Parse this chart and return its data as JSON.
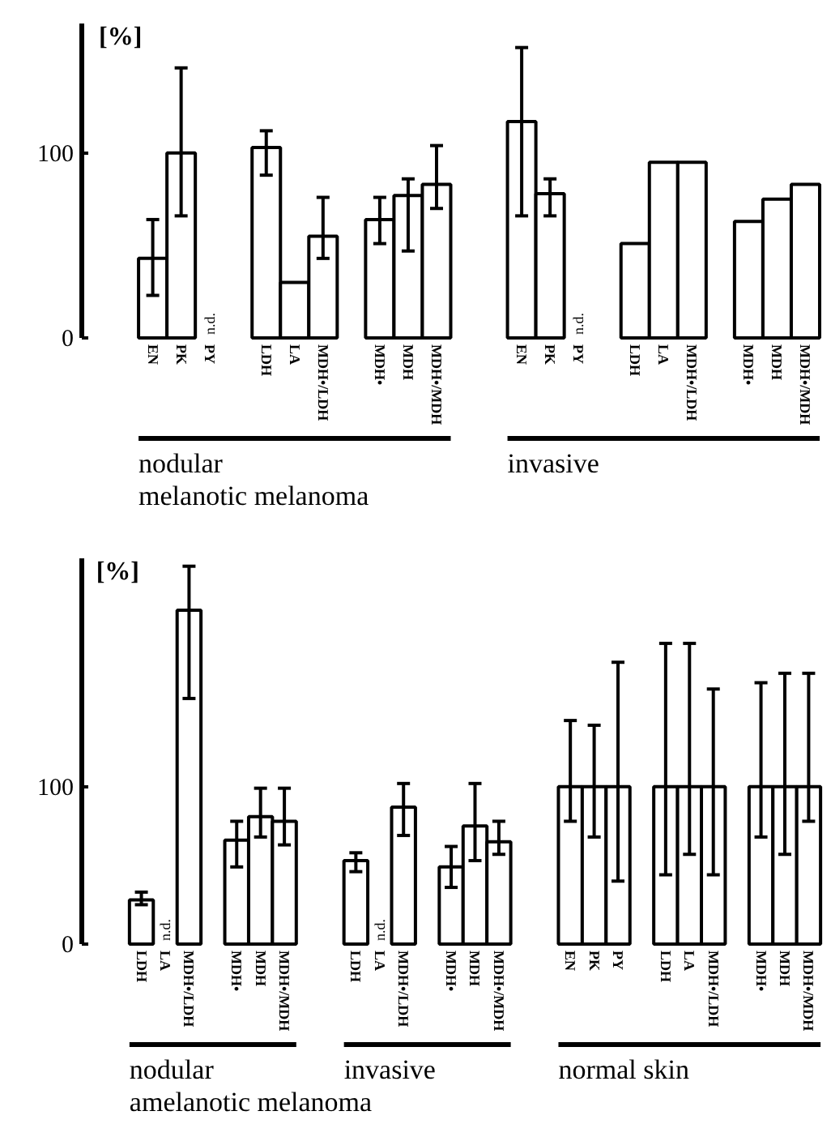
{
  "chart_data": [
    {
      "type": "bar",
      "ylabel": "[%]",
      "ylim": [
        0,
        170
      ],
      "yticks": [
        0,
        100
      ],
      "color": "#ffffff",
      "categories": [
        "EN",
        "PK",
        "PY",
        null,
        "LDH",
        "LA",
        "MDH•/LDH",
        null,
        "MDH•",
        "MDH",
        "MDH•/MDH",
        null,
        null,
        "EN",
        "PK",
        "PY",
        null,
        "LDH",
        "LA",
        "MDH•/LDH",
        null,
        "MDH•",
        "MDH",
        "MDH•/MDH"
      ],
      "values": [
        43,
        100,
        null,
        null,
        103,
        30,
        55,
        null,
        64,
        77,
        83,
        null,
        null,
        117,
        78,
        null,
        null,
        51,
        95,
        95,
        null,
        63,
        75,
        83
      ],
      "errors": [
        [
          23,
          64
        ],
        [
          66,
          146
        ],
        null,
        null,
        [
          88,
          112
        ],
        null,
        [
          43,
          76
        ],
        null,
        [
          51,
          76
        ],
        [
          47,
          86
        ],
        [
          70,
          104
        ],
        null,
        null,
        [
          66,
          157
        ],
        [
          66,
          86
        ],
        null,
        null,
        null,
        null,
        null,
        null,
        null,
        null,
        null
      ],
      "value_labels": [
        null,
        null,
        "n.d.",
        null,
        null,
        null,
        null,
        null,
        null,
        null,
        null,
        null,
        null,
        null,
        null,
        "n.d.",
        null,
        null,
        null,
        null,
        null,
        null,
        null,
        null
      ],
      "annotations": [
        "nodular",
        "invasive",
        "melanotic  melanoma"
      ]
    },
    {
      "type": "bar",
      "ylabel": "[%]",
      "ylim": [
        0,
        245
      ],
      "yticks": [
        0,
        100
      ],
      "color": "#ffffff",
      "categories": [
        "LDH",
        "LA",
        "MDH•/LDH",
        null,
        "MDH•",
        "MDH",
        "MDH•/MDH",
        null,
        null,
        "LDH",
        "LA",
        "MDH•/LDH",
        null,
        "MDH•",
        "MDH",
        "MDH•/MDH",
        null,
        null,
        "EN",
        "PK",
        "PY",
        null,
        "LDH",
        "LA",
        "MDH•/LDH",
        null,
        "MDH•",
        "MDH",
        "MDH•/MDH"
      ],
      "values": [
        28,
        null,
        212,
        null,
        66,
        81,
        78,
        null,
        null,
        53,
        null,
        87,
        null,
        49,
        75,
        65,
        null,
        null,
        100,
        100,
        100,
        null,
        100,
        100,
        100,
        null,
        100,
        100,
        100
      ],
      "errors": [
        [
          25,
          33
        ],
        null,
        [
          156,
          240
        ],
        null,
        [
          49,
          78
        ],
        [
          68,
          99
        ],
        [
          63,
          99
        ],
        null,
        null,
        [
          46,
          58
        ],
        null,
        [
          69,
          102
        ],
        null,
        [
          36,
          62
        ],
        [
          53,
          102
        ],
        [
          57,
          78
        ],
        null,
        null,
        [
          78,
          142
        ],
        [
          68,
          139
        ],
        [
          40,
          179
        ],
        null,
        [
          44,
          191
        ],
        [
          57,
          191
        ],
        [
          44,
          162
        ],
        null,
        [
          68,
          166
        ],
        [
          57,
          172
        ],
        [
          78,
          172
        ]
      ],
      "value_labels": [
        null,
        "n.d.",
        null,
        null,
        null,
        null,
        null,
        null,
        null,
        null,
        "n.d.",
        null,
        null,
        null,
        null,
        null,
        null,
        null,
        null,
        null,
        null,
        null,
        null,
        null,
        null,
        null,
        null,
        null,
        null
      ],
      "annotations": [
        "nodular",
        "invasive",
        "normal skin",
        "amelanotic  melanoma"
      ]
    }
  ]
}
